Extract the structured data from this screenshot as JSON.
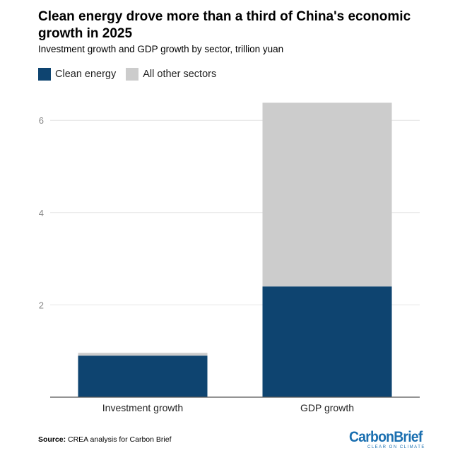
{
  "colors": {
    "clean": "#0e4470",
    "other": "#cccccc",
    "grid": "#e4e4e4",
    "axis_text": "#8a8a8a",
    "brand": "#1a6fb0"
  },
  "chart_data": {
    "type": "bar",
    "stacked": true,
    "title": "Clean energy drove more than a third of China's economic growth in 2025",
    "subtitle": "Investment growth and GDP growth by sector, trillion yuan",
    "categories": [
      "Investment growth",
      "GDP growth"
    ],
    "series": [
      {
        "name": "Clean energy",
        "values": [
          0.9,
          2.4
        ]
      },
      {
        "name": "All other sectors",
        "values": [
          0.06,
          3.98
        ]
      }
    ],
    "yticks": [
      2,
      4,
      6
    ],
    "ylim": [
      0,
      6.6
    ],
    "grid": true,
    "legend_position": "top-left"
  },
  "source": {
    "label": "Source:",
    "text": " CREA analysis for Carbon Brief"
  },
  "brand": {
    "name": "CarbonBrief",
    "tagline": "CLEAR ON CLIMATE"
  }
}
